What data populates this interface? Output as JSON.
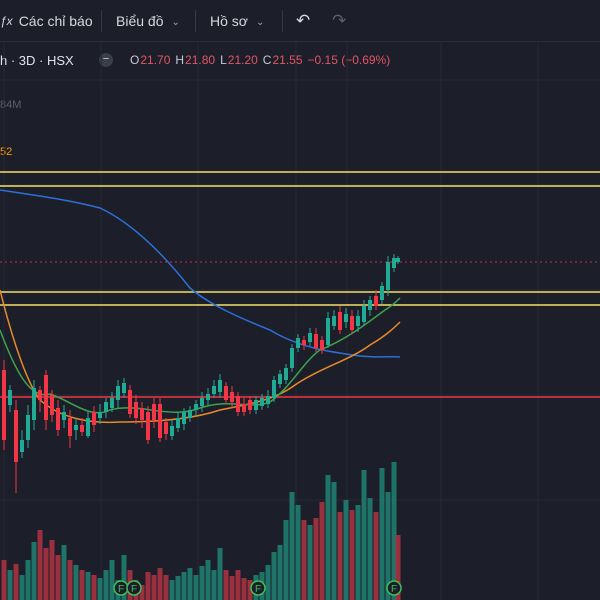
{
  "toolbar": {
    "indicators_label": "Các chỉ báo",
    "chart_type_label": "Biểu đồ",
    "template_label": "Hồ sơ",
    "indicators_icon": "fx-icon",
    "undo_icon": "undo-icon",
    "redo_icon": "redo-icon"
  },
  "legend": {
    "symbol_fragment": "h · 3D · HSX",
    "collapse_icon": "minus-circle-icon",
    "open_label": "O",
    "open": "21.70",
    "high_label": "H",
    "high": "21.80",
    "low_label": "L",
    "low": "21.20",
    "close_label": "C",
    "close": "21.55",
    "change": "−0.15 (−0.69%)"
  },
  "indicator_values": {
    "volume_fragment": "84M",
    "ma_fragment": "52"
  },
  "colors": {
    "background": "#1c1e29",
    "up": "#22ab94",
    "down": "#f23645",
    "ma_blue": "#2962ff",
    "ma_orange": "#ff9800",
    "ma_green": "#4caf50",
    "horizontal_yellow": "#f0e168",
    "horizontal_red": "#f23645"
  },
  "markers": {
    "label": "F",
    "count": 4
  }
}
